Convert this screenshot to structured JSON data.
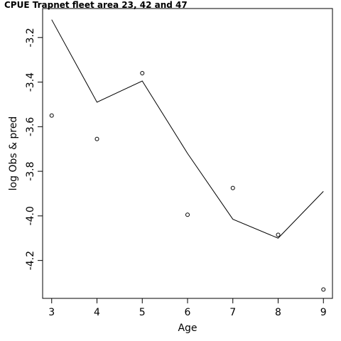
{
  "chart_data": {
    "type": "line",
    "title": "CPUE Trapnet fleet area 23, 42 and 47",
    "xlabel": "Age",
    "ylabel": "log Obs & pred",
    "x": [
      3,
      4,
      5,
      6,
      7,
      8,
      9
    ],
    "xlim": [
      2.8,
      9.2
    ],
    "ylim": [
      -4.37,
      -3.07
    ],
    "xticks": [
      3,
      4,
      5,
      6,
      7,
      8,
      9
    ],
    "yticks": [
      -4.2,
      -4.0,
      -3.8,
      -3.6,
      -3.4,
      -3.2
    ],
    "ytick_labels": [
      "-4.2",
      "-4.0",
      "-3.8",
      "-3.6",
      "-3.4",
      "-3.2"
    ],
    "series": [
      {
        "style": "line",
        "color": "#000000",
        "values": [
          -3.12,
          -3.49,
          -3.395,
          -3.72,
          -4.015,
          -4.1,
          -3.89
        ]
      },
      {
        "style": "points",
        "color": "#000000",
        "values": [
          -3.55,
          -3.655,
          -3.36,
          -3.995,
          -3.875,
          -4.085,
          -4.33
        ]
      }
    ],
    "grid": false,
    "legend": "none"
  }
}
